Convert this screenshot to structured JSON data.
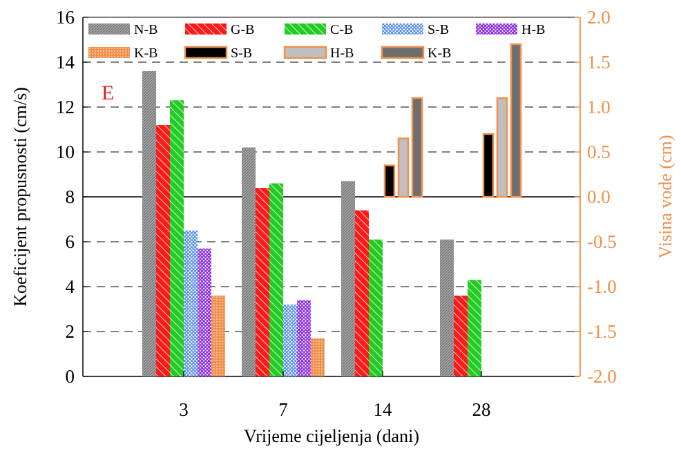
{
  "chart_data": {
    "type": "bar",
    "panel_label": "E",
    "xlabel": "Vrijeme cijeljenja (dani)",
    "ylabel": "Koeficijent propusnosti (cm/s)",
    "ylabel_right": "Visina vode (cm)",
    "categories": [
      "3",
      "7",
      "14",
      "28"
    ],
    "ylim": [
      0,
      16
    ],
    "y_ticks": [
      "0",
      "2",
      "4",
      "6",
      "8",
      "10",
      "12",
      "14",
      "16"
    ],
    "ylim_right": [
      -2.0,
      2.0
    ],
    "y_ticks_right": [
      "-2.0",
      "-1.5",
      "-1.0",
      "-0.5",
      "0.0",
      "0.5",
      "1.0",
      "1.5",
      "2.0"
    ],
    "grid": "horizontal dashed",
    "legend_placement": "top",
    "series": [
      {
        "name": "N-B",
        "axis": "left",
        "pattern": "grey-hatch",
        "values": [
          13.6,
          10.2,
          8.7,
          6.1
        ]
      },
      {
        "name": "G-B",
        "axis": "left",
        "pattern": "red-diagonal",
        "values": [
          11.2,
          8.4,
          7.4,
          3.6
        ]
      },
      {
        "name": "C-B",
        "axis": "left",
        "pattern": "green-diagonal",
        "values": [
          12.3,
          8.6,
          6.1,
          4.3
        ]
      },
      {
        "name": "S-B",
        "axis": "left",
        "pattern": "blue-crosshatch",
        "values": [
          6.5,
          3.2,
          null,
          null
        ]
      },
      {
        "name": "H-B",
        "axis": "left",
        "pattern": "purple-crosshatch",
        "values": [
          5.7,
          3.4,
          null,
          null
        ]
      },
      {
        "name": "K-B",
        "axis": "left",
        "pattern": "orange-dots",
        "values": [
          3.6,
          1.7,
          null,
          null
        ]
      },
      {
        "name": "S-B",
        "axis": "right",
        "pattern": "black-solid",
        "values": [
          null,
          null,
          0.35,
          0.7
        ]
      },
      {
        "name": "H-B",
        "axis": "right",
        "pattern": "lightgrey-solid",
        "values": [
          null,
          null,
          0.65,
          1.1
        ]
      },
      {
        "name": "K-B",
        "axis": "right",
        "pattern": "darkgrey-solid",
        "values": [
          null,
          null,
          1.1,
          1.7
        ]
      }
    ]
  },
  "colors": {
    "right_axis": "#F0904A",
    "panel_label": "#E8171B",
    "N-B": "#8c8c8c",
    "G-B": "#FF1A1A",
    "C-B": "#22CC22",
    "S-B": "#4A86E8",
    "H-B": "#8A2BE2",
    "K-B": "#F0904A",
    "S-B_right": "#000000",
    "H-B_right": "#C0C0C0",
    "K-B_right": "#6E6E6E"
  }
}
